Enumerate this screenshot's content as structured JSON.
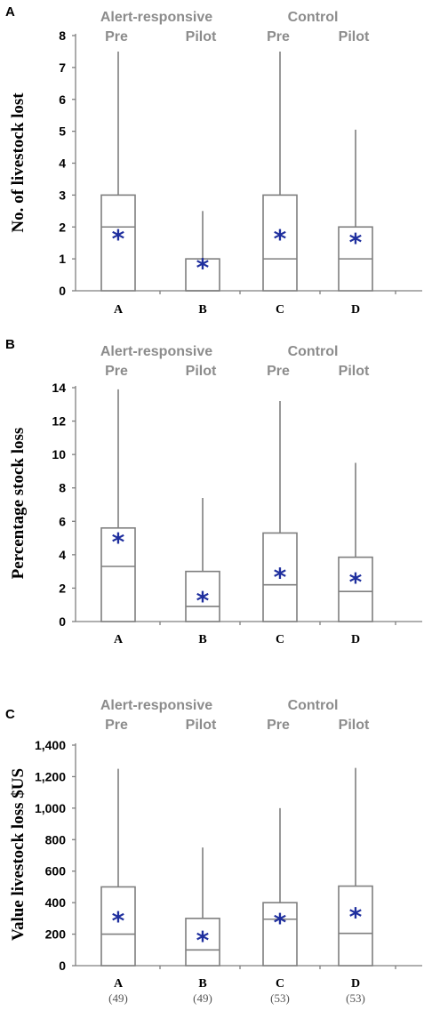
{
  "chart_data": [
    {
      "type": "box",
      "panel": "A",
      "ylabel": "No. of livestock lost",
      "ylim": [
        0,
        8
      ],
      "yticks": [
        0,
        1,
        2,
        3,
        4,
        5,
        6,
        7,
        8
      ],
      "ytick_labels": [
        "0",
        "1",
        "2",
        "3",
        "4",
        "5",
        "6",
        "7",
        "8"
      ],
      "group_labels": [
        "Alert-responsive",
        "Control"
      ],
      "condition_labels": [
        "Pre",
        "Pilot",
        "Pre",
        "Pilot"
      ],
      "categories": [
        "A",
        "B",
        "C",
        "D"
      ],
      "sample_sizes": [],
      "boxes": [
        {
          "min": 0,
          "q1": 0,
          "median": 2,
          "q3": 3,
          "max": 7.5,
          "mean": 1.75
        },
        {
          "min": 0,
          "q1": 0,
          "median": 0,
          "q3": 1,
          "max": 2.5,
          "mean": 0.85
        },
        {
          "min": 0,
          "q1": 0,
          "median": 1,
          "q3": 3,
          "max": 7.5,
          "mean": 1.75
        },
        {
          "min": 0,
          "q1": 0,
          "median": 1,
          "q3": 2,
          "max": 5.05,
          "mean": 1.65
        }
      ],
      "mean_marker": "*",
      "colors": {
        "box": "#7f7f7f",
        "mean": "#1f2f9e",
        "header": "#8c8c8c"
      }
    },
    {
      "type": "box",
      "panel": "B",
      "ylabel": "Percentage stock loss",
      "ylim": [
        0,
        14
      ],
      "yticks": [
        0,
        2,
        4,
        6,
        8,
        10,
        12,
        14
      ],
      "ytick_labels": [
        "0",
        "2",
        "4",
        "6",
        "8",
        "10",
        "12",
        "14"
      ],
      "group_labels": [
        "Alert-responsive",
        "Control"
      ],
      "condition_labels": [
        "Pre",
        "Pilot",
        "Pre",
        "Pilot"
      ],
      "categories": [
        "A",
        "B",
        "C",
        "D"
      ],
      "sample_sizes": [],
      "boxes": [
        {
          "min": 0,
          "q1": 0,
          "median": 3.3,
          "q3": 5.6,
          "max": 13.9,
          "mean": 5.0
        },
        {
          "min": 0,
          "q1": 0,
          "median": 0.9,
          "q3": 3.0,
          "max": 7.4,
          "mean": 1.5
        },
        {
          "min": 0,
          "q1": 0,
          "median": 2.2,
          "q3": 5.3,
          "max": 13.2,
          "mean": 2.9
        },
        {
          "min": 0,
          "q1": 0,
          "median": 1.8,
          "q3": 3.85,
          "max": 9.5,
          "mean": 2.6
        }
      ],
      "mean_marker": "*",
      "colors": {
        "box": "#7f7f7f",
        "mean": "#1f2f9e",
        "header": "#8c8c8c"
      }
    },
    {
      "type": "box",
      "panel": "C",
      "ylabel": "Value livestock loss $US",
      "ylim": [
        0,
        1400
      ],
      "yticks": [
        0,
        200,
        400,
        600,
        800,
        1000,
        1200,
        1400
      ],
      "ytick_labels": [
        "0",
        "200",
        "400",
        "600",
        "800",
        "1,000",
        "1,200",
        "1,400"
      ],
      "group_labels": [
        "Alert-responsive",
        "Control"
      ],
      "condition_labels": [
        "Pre",
        "Pilot",
        "Pre",
        "Pilot"
      ],
      "categories": [
        "A",
        "B",
        "C",
        "D"
      ],
      "sample_sizes": [
        "(49)",
        "(49)",
        "(53)",
        "(53)"
      ],
      "boxes": [
        {
          "min": 0,
          "q1": 0,
          "median": 200,
          "q3": 500,
          "max": 1250,
          "mean": 310
        },
        {
          "min": 0,
          "q1": 0,
          "median": 100,
          "q3": 300,
          "max": 750,
          "mean": 185
        },
        {
          "min": 0,
          "q1": 0,
          "median": 295,
          "q3": 400,
          "max": 1000,
          "mean": 300
        },
        {
          "min": 0,
          "q1": 0,
          "median": 205,
          "q3": 505,
          "max": 1255,
          "mean": 335
        }
      ],
      "mean_marker": "*",
      "colors": {
        "box": "#7f7f7f",
        "mean": "#1f2f9e",
        "header": "#8c8c8c"
      }
    }
  ]
}
